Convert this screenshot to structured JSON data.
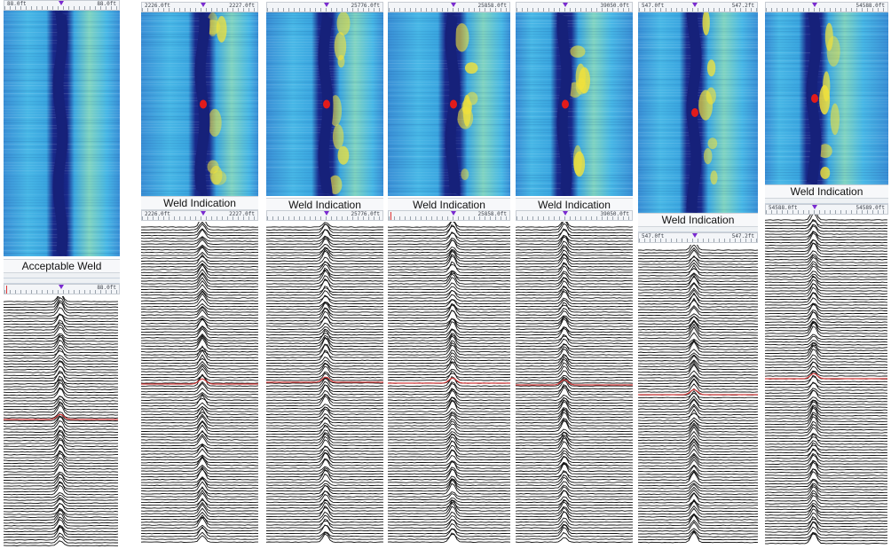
{
  "panels": [
    {
      "id": "p1",
      "label": "Acceptable Weld",
      "ruler_top": {
        "left": "88.0ft",
        "right": "88.0ft"
      },
      "ruler_mid": {
        "left": "",
        "right": "88.0ft"
      }
    },
    {
      "id": "p2",
      "label": "Weld Indication",
      "ruler_top": {
        "left": "2226.0ft",
        "right": "2227.0ft"
      },
      "ruler_mid": {
        "left": "2226.0ft",
        "right": "2227.0ft"
      }
    },
    {
      "id": "p3",
      "label": "Weld Indication",
      "ruler_top": {
        "left": "",
        "right": "25776.0ft"
      },
      "ruler_mid": {
        "left": "",
        "right": "25776.0ft"
      }
    },
    {
      "id": "p4",
      "label": "Weld Indication",
      "ruler_top": {
        "left": "",
        "right": "25858.0ft"
      },
      "ruler_mid": {
        "left": "",
        "right": "25858.0ft"
      }
    },
    {
      "id": "p5",
      "label": "Weld Indication",
      "ruler_top": {
        "left": "",
        "right": "39050.0ft"
      },
      "ruler_mid": {
        "left": "",
        "right": "39050.0ft"
      }
    },
    {
      "id": "p6",
      "label": "Weld Indication",
      "ruler_top": {
        "left": "547.0ft",
        "right": "547.2ft"
      },
      "ruler_mid": {
        "left": "547.0ft",
        "right": "547.2ft"
      }
    },
    {
      "id": "p7",
      "label": "Weld Indication",
      "ruler_top": {
        "left": "",
        "right": "54588.0ft"
      },
      "ruler_mid": {
        "left": "54588.0ft",
        "right": "54589.0ft"
      }
    }
  ],
  "colors": {
    "heat_low": "#1a2a8c",
    "heat_mid": "#37b3e0",
    "heat_high": "#f2e23a",
    "heat_peak": "#e21b1b",
    "trace": "#111111",
    "weld_line": "#d23a3a",
    "marker": "#7a2ad0"
  }
}
